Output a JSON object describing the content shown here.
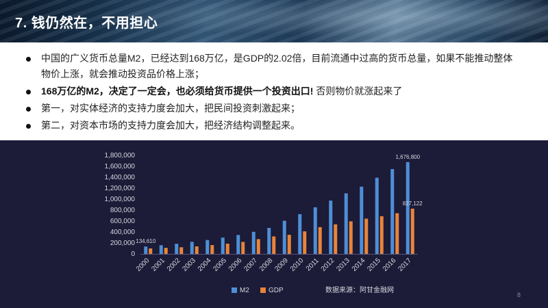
{
  "header": {
    "title": "7. 钱仍然在，不用担心"
  },
  "bullets": [
    {
      "text": "中国的广义货币总量M2，已经达到168万亿，是GDP的2.02倍，目前流通中过高的货币总量，如果不能推动整体物价上涨，就会推动投资品价格上涨；"
    },
    {
      "bold": "168万亿的M2，决定了一定会，也必须给货币提供一个投资出口!",
      "rest": " 否则物价就涨起来了"
    },
    {
      "text": "第一，对实体经济的支持力度会加大，把民间投资刺激起来；"
    },
    {
      "text": "第二，对资本市场的支持力度会加大，把经济结构调整起来。"
    }
  ],
  "source_note": "数据来源：阿甘金融网",
  "page_number": "8",
  "colors": {
    "m2": "#4e8fd6",
    "gdp": "#e8843a",
    "panel": "#1c1b38",
    "text": "#d8d8e0"
  },
  "chart_data": {
    "type": "bar",
    "categories": [
      "2000",
      "2001",
      "2002",
      "2003",
      "2004",
      "2005",
      "2006",
      "2007",
      "2008",
      "2009",
      "2010",
      "2011",
      "2012",
      "2013",
      "2014",
      "2015",
      "2016",
      "2017"
    ],
    "series": [
      {
        "name": "M2",
        "values": [
          134610,
          158302,
          185007,
          221223,
          254107,
          298756,
          345578,
          403442,
          475167,
          606225,
          725852,
          851591,
          974149,
          1106525,
          1228375,
          1392278,
          1550067,
          1676800
        ]
      },
      {
        "name": "GDP",
        "values": [
          100280,
          110863,
          121717,
          137422,
          161840,
          187319,
          219439,
          270232,
          319516,
          349081,
          413030,
          489301,
          540367,
          595244,
          643974,
          689052,
          743586,
          827122
        ]
      }
    ],
    "ylim": [
      0,
      1800000
    ],
    "yticks": [
      "0",
      "200,000",
      "400,000",
      "600,000",
      "800,000",
      "1,000,000",
      "1,200,000",
      "1,400,000",
      "1,600,000",
      "1,800,000"
    ],
    "data_labels": [
      {
        "series": "M2",
        "index": 0,
        "text": "134,610"
      },
      {
        "series": "M2",
        "index": 17,
        "text": "1,676,800"
      },
      {
        "series": "GDP",
        "index": 17,
        "text": "827,122"
      }
    ],
    "legend_position": "bottom",
    "grid": false
  }
}
